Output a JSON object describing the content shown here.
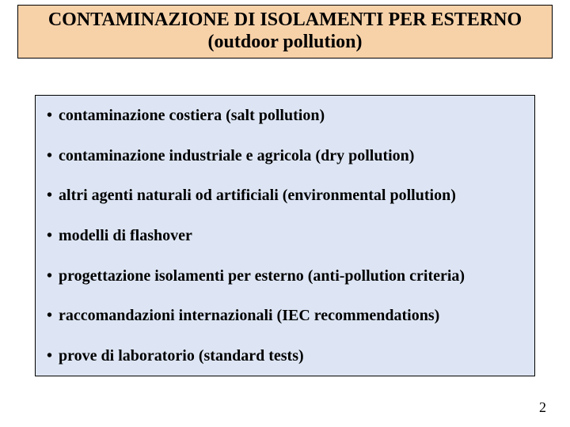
{
  "title": {
    "line1": "CONTAMINAZIONE DI ISOLAMENTI PER ESTERNO",
    "line2": "(outdoor pollution)",
    "background_color": "#f7d1a8",
    "border_color": "#000000",
    "font_size_pt": 24,
    "font_weight": "bold",
    "text_color": "#000000"
  },
  "content": {
    "background_color": "#dde5f4",
    "border_color": "#000000",
    "bullet_glyph": "•",
    "font_size_pt": 20,
    "font_weight": "bold",
    "text_color": "#000000",
    "items": [
      "contaminazione costiera (salt pollution)",
      "contaminazione industriale e agricola (dry pollution)",
      "altri agenti naturali od artificiali (environmental pollution)",
      "modelli di flashover",
      "progettazione isolamenti per esterno (anti-pollution criteria)",
      "raccomandazioni internazionali (IEC recommendations)",
      "prove di laboratorio (standard tests)"
    ]
  },
  "page_number": "2",
  "page_number_fontsize_pt": 18,
  "page_background_color": "#ffffff"
}
